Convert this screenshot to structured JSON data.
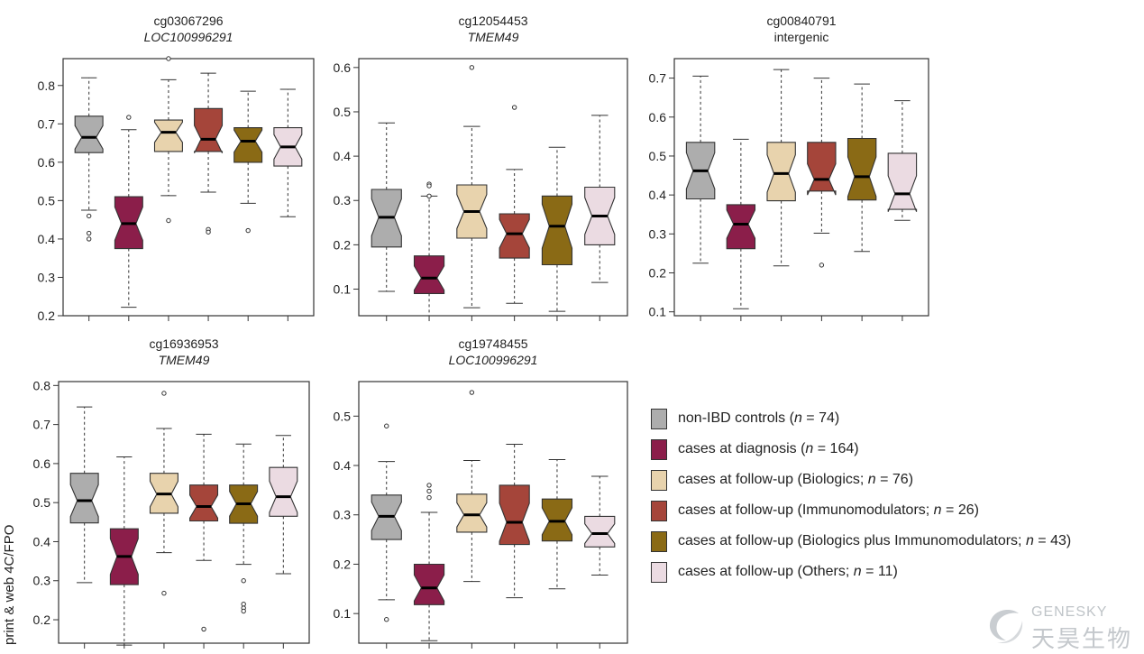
{
  "side_label": "print & web 4C/FPO",
  "watermark": {
    "en": "GENESKY",
    "cn": "天昊生物"
  },
  "legend": [
    {
      "label": "non-IBD controls (",
      "n": "n",
      "rest": " = 74)",
      "color": "#adadad"
    },
    {
      "label": "cases at diagnosis (",
      "n": "n",
      "rest": " = 164)",
      "color": "#8b1e4a"
    },
    {
      "label": "cases at follow-up (Biologics; ",
      "n": "n",
      "rest": " = 76)",
      "color": "#e8d3ad"
    },
    {
      "label": "cases at follow-up (Immunomodulators; ",
      "n": "n",
      "rest": " = 26)",
      "color": "#a5453a"
    },
    {
      "label": "cases at follow-up (Biologics plus Immunomodulators; ",
      "n": "n",
      "rest": " = 43)",
      "color": "#8a6a15"
    },
    {
      "label": "cases at follow-up (Others; ",
      "n": "n",
      "rest": " = 11)",
      "color": "#ebdbe2"
    }
  ],
  "chart_data": [
    {
      "type": "boxplot",
      "title": "cg03067296",
      "subtitle": "LOC100996291",
      "subtitle_italic": true,
      "ylim": [
        0.2,
        0.87
      ],
      "yticks": [
        0.2,
        0.3,
        0.4,
        0.5,
        0.6,
        0.7,
        0.8
      ],
      "boxes": [
        {
          "group": 0,
          "whislo": 0.475,
          "q1": 0.625,
          "med": 0.665,
          "q3": 0.72,
          "whishi": 0.82,
          "fliers": [
            0.46,
            0.415,
            0.4
          ]
        },
        {
          "group": 1,
          "whislo": 0.222,
          "q1": 0.375,
          "med": 0.44,
          "q3": 0.51,
          "whishi": 0.685,
          "fliers": [
            0.717
          ]
        },
        {
          "group": 2,
          "whislo": 0.513,
          "q1": 0.628,
          "med": 0.678,
          "q3": 0.71,
          "whishi": 0.815,
          "fliers": [
            0.87,
            0.448
          ]
        },
        {
          "group": 3,
          "whislo": 0.522,
          "q1": 0.628,
          "med": 0.66,
          "q3": 0.74,
          "whishi": 0.832,
          "fliers": [
            0.425,
            0.418
          ]
        },
        {
          "group": 4,
          "whislo": 0.493,
          "q1": 0.6,
          "med": 0.655,
          "q3": 0.69,
          "whishi": 0.785,
          "fliers": [
            0.422
          ]
        },
        {
          "group": 5,
          "whislo": 0.458,
          "q1": 0.59,
          "med": 0.64,
          "q3": 0.69,
          "whishi": 0.79,
          "fliers": []
        }
      ]
    },
    {
      "type": "boxplot",
      "title": "cg12054453",
      "subtitle": "TMEM49",
      "subtitle_italic": true,
      "ylim": [
        0.04,
        0.62
      ],
      "yticks": [
        0.1,
        0.2,
        0.3,
        0.4,
        0.5,
        0.6
      ],
      "boxes": [
        {
          "group": 0,
          "whislo": 0.095,
          "q1": 0.195,
          "med": 0.262,
          "q3": 0.325,
          "whishi": 0.475,
          "fliers": []
        },
        {
          "group": 1,
          "whislo": 0.04,
          "q1": 0.09,
          "med": 0.125,
          "q3": 0.175,
          "whishi": 0.31,
          "fliers": [
            0.337,
            0.333,
            0.31
          ]
        },
        {
          "group": 2,
          "whislo": 0.058,
          "q1": 0.215,
          "med": 0.275,
          "q3": 0.335,
          "whishi": 0.467,
          "fliers": [
            0.6
          ]
        },
        {
          "group": 3,
          "whislo": 0.068,
          "q1": 0.17,
          "med": 0.225,
          "q3": 0.27,
          "whishi": 0.37,
          "fliers": [
            0.51
          ]
        },
        {
          "group": 4,
          "whislo": 0.05,
          "q1": 0.155,
          "med": 0.242,
          "q3": 0.31,
          "whishi": 0.42,
          "fliers": []
        },
        {
          "group": 5,
          "whislo": 0.115,
          "q1": 0.2,
          "med": 0.265,
          "q3": 0.33,
          "whishi": 0.492,
          "fliers": []
        }
      ]
    },
    {
      "type": "boxplot",
      "title": "cg00840791",
      "subtitle": "intergenic",
      "subtitle_italic": false,
      "ylim": [
        0.09,
        0.75
      ],
      "yticks": [
        0.1,
        0.2,
        0.3,
        0.4,
        0.5,
        0.6,
        0.7
      ],
      "boxes": [
        {
          "group": 0,
          "whislo": 0.225,
          "q1": 0.39,
          "med": 0.462,
          "q3": 0.535,
          "whishi": 0.705,
          "fliers": []
        },
        {
          "group": 1,
          "whislo": 0.108,
          "q1": 0.262,
          "med": 0.325,
          "q3": 0.375,
          "whishi": 0.543,
          "fliers": []
        },
        {
          "group": 2,
          "whislo": 0.218,
          "q1": 0.385,
          "med": 0.455,
          "q3": 0.535,
          "whishi": 0.722,
          "fliers": []
        },
        {
          "group": 3,
          "whislo": 0.302,
          "q1": 0.41,
          "med": 0.44,
          "q3": 0.535,
          "whishi": 0.7,
          "fliers": [
            0.22
          ]
        },
        {
          "group": 4,
          "whislo": 0.255,
          "q1": 0.387,
          "med": 0.447,
          "q3": 0.545,
          "whishi": 0.685,
          "fliers": []
        },
        {
          "group": 5,
          "whislo": 0.335,
          "q1": 0.363,
          "med": 0.403,
          "q3": 0.507,
          "whishi": 0.642,
          "fliers": []
        }
      ]
    },
    {
      "type": "boxplot",
      "title": "cg16936953",
      "subtitle": "TMEM49",
      "subtitle_italic": true,
      "ylim": [
        0.14,
        0.81
      ],
      "yticks": [
        0.2,
        0.3,
        0.4,
        0.5,
        0.6,
        0.7,
        0.8
      ],
      "boxes": [
        {
          "group": 0,
          "whislo": 0.295,
          "q1": 0.448,
          "med": 0.505,
          "q3": 0.575,
          "whishi": 0.745,
          "fliers": []
        },
        {
          "group": 1,
          "whislo": 0.135,
          "q1": 0.29,
          "med": 0.362,
          "q3": 0.433,
          "whishi": 0.617,
          "fliers": []
        },
        {
          "group": 2,
          "whislo": 0.372,
          "q1": 0.473,
          "med": 0.522,
          "q3": 0.575,
          "whishi": 0.69,
          "fliers": [
            0.78,
            0.268
          ]
        },
        {
          "group": 3,
          "whislo": 0.352,
          "q1": 0.453,
          "med": 0.49,
          "q3": 0.545,
          "whishi": 0.675,
          "fliers": [
            0.176
          ]
        },
        {
          "group": 4,
          "whislo": 0.342,
          "q1": 0.447,
          "med": 0.497,
          "q3": 0.545,
          "whishi": 0.65,
          "fliers": [
            0.3,
            0.24,
            0.23,
            0.222
          ]
        },
        {
          "group": 5,
          "whislo": 0.318,
          "q1": 0.465,
          "med": 0.515,
          "q3": 0.59,
          "whishi": 0.672,
          "fliers": []
        }
      ]
    },
    {
      "type": "boxplot",
      "title": "cg19748455",
      "subtitle": "LOC100996291",
      "subtitle_italic": true,
      "ylim": [
        0.04,
        0.57
      ],
      "yticks": [
        0.1,
        0.2,
        0.3,
        0.4,
        0.5
      ],
      "boxes": [
        {
          "group": 0,
          "whislo": 0.128,
          "q1": 0.25,
          "med": 0.297,
          "q3": 0.34,
          "whishi": 0.408,
          "fliers": [
            0.48,
            0.088
          ]
        },
        {
          "group": 1,
          "whislo": 0.045,
          "q1": 0.118,
          "med": 0.152,
          "q3": 0.2,
          "whishi": 0.305,
          "fliers": [
            0.36,
            0.348,
            0.335
          ]
        },
        {
          "group": 2,
          "whislo": 0.165,
          "q1": 0.265,
          "med": 0.3,
          "q3": 0.342,
          "whishi": 0.41,
          "fliers": [
            0.548
          ]
        },
        {
          "group": 3,
          "whislo": 0.132,
          "q1": 0.24,
          "med": 0.285,
          "q3": 0.36,
          "whishi": 0.443,
          "fliers": []
        },
        {
          "group": 4,
          "whislo": 0.15,
          "q1": 0.247,
          "med": 0.287,
          "q3": 0.332,
          "whishi": 0.412,
          "fliers": []
        },
        {
          "group": 5,
          "whislo": 0.178,
          "q1": 0.235,
          "med": 0.262,
          "q3": 0.297,
          "whishi": 0.378,
          "fliers": []
        }
      ]
    }
  ]
}
